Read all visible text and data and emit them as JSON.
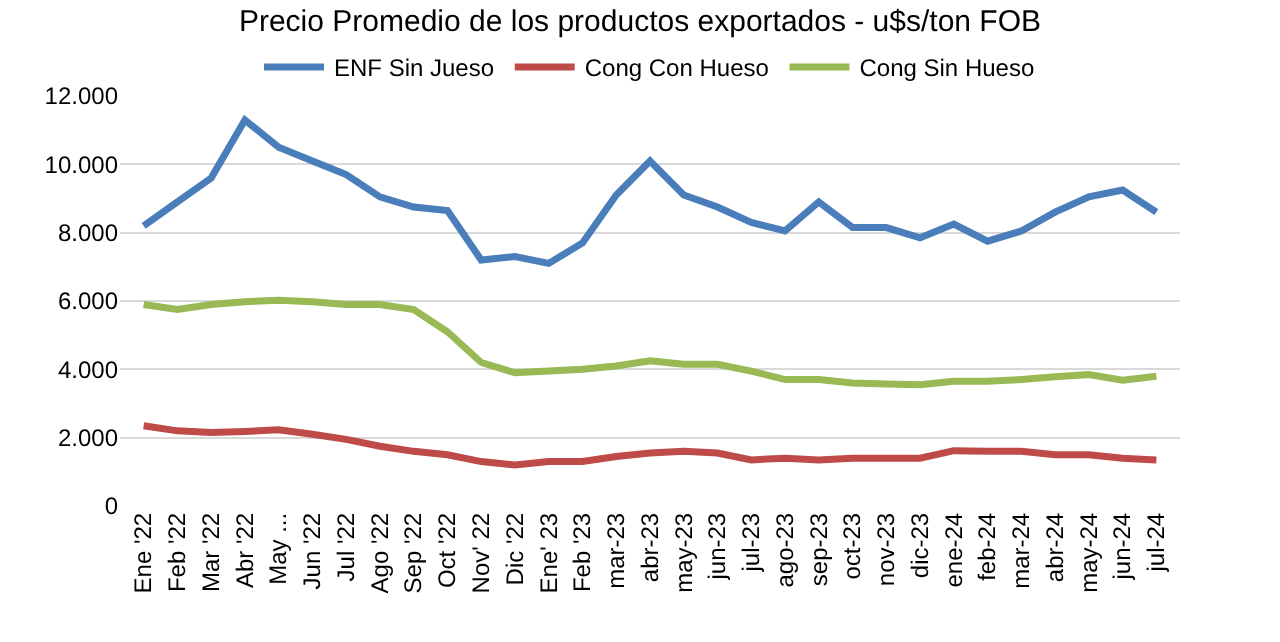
{
  "chart_data": {
    "type": "line",
    "title": "Precio Promedio de los productos exportados - u$s/ton FOB",
    "categories": [
      "Ene '22",
      "Feb '22",
      "Mar '22",
      "Abr '22",
      "May ...",
      "Jun '22",
      "Jul '22",
      "Ago '22",
      "Sep '22",
      "Oct '22",
      "Nov' 22",
      "Dic '22",
      "Ene' 23",
      "Feb '23",
      "mar-23",
      "abr-23",
      "may-23",
      "jun-23",
      "jul-23",
      "ago-23",
      "sep-23",
      "oct-23",
      "nov-23",
      "dic-23",
      "ene-24",
      "feb-24",
      "mar-24",
      "abr-24",
      "may-24",
      "jun-24",
      "jul-24"
    ],
    "series": [
      {
        "name": "ENF Sin Jueso",
        "color": "#4a7ebb",
        "values": [
          8200,
          8900,
          9600,
          11300,
          10500,
          10100,
          9700,
          9050,
          8750,
          8650,
          7200,
          7300,
          7100,
          7700,
          9100,
          10100,
          9100,
          8750,
          8300,
          8050,
          8900,
          8150,
          8150,
          7850,
          8250,
          7750,
          8050,
          8600,
          9050,
          9250,
          8600
        ]
      },
      {
        "name": "Cong Con Hueso",
        "color": "#be4b48",
        "values": [
          2350,
          2200,
          2150,
          2180,
          2230,
          2100,
          1950,
          1750,
          1600,
          1500,
          1300,
          1200,
          1300,
          1300,
          1450,
          1550,
          1600,
          1550,
          1350,
          1400,
          1350,
          1400,
          1400,
          1400,
          1620,
          1600,
          1600,
          1500,
          1500,
          1400,
          1350
        ]
      },
      {
        "name": "Cong Sin Hueso",
        "color": "#98b954",
        "values": [
          5900,
          5750,
          5900,
          5980,
          6020,
          5980,
          5900,
          5900,
          5750,
          5100,
          4200,
          3900,
          3950,
          4000,
          4100,
          4250,
          4150,
          4150,
          3950,
          3700,
          3700,
          3600,
          3570,
          3550,
          3650,
          3650,
          3700,
          3780,
          3850,
          3680,
          3800
        ]
      }
    ],
    "ylim": [
      0,
      12000
    ],
    "yticks": [
      {
        "value": 0,
        "label": "0"
      },
      {
        "value": 2000,
        "label": "2.000"
      },
      {
        "value": 4000,
        "label": "4.000"
      },
      {
        "value": 6000,
        "label": "6.000"
      },
      {
        "value": 8000,
        "label": "8.000"
      },
      {
        "value": 10000,
        "label": "10.000"
      },
      {
        "value": 12000,
        "label": "12.000"
      }
    ],
    "grid": "y",
    "legend": "top",
    "marker": "none",
    "line_style": "solid"
  }
}
